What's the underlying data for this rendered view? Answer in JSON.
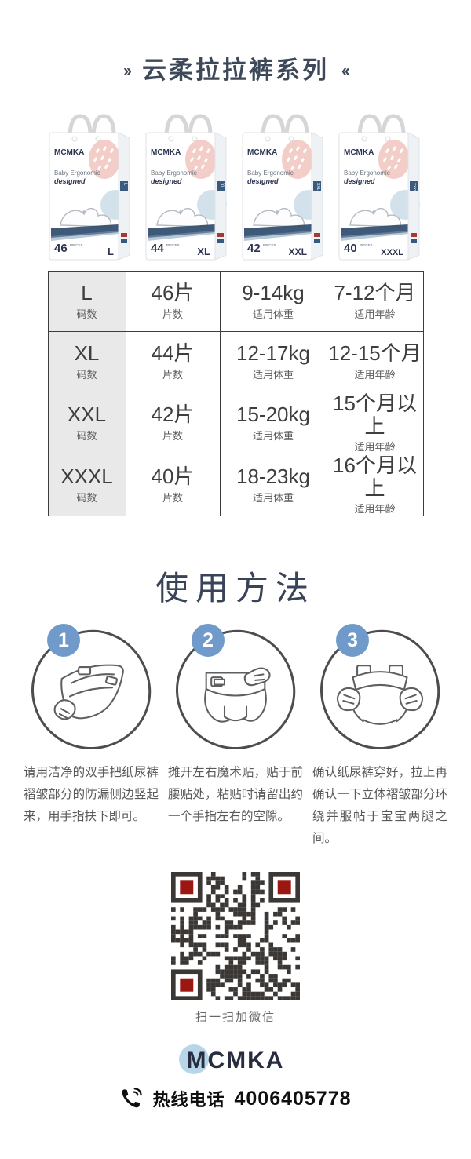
{
  "header": {
    "left_arrows": "››",
    "title": "云柔拉拉裤系列",
    "right_arrows": "‹‹"
  },
  "brand": "MCMKA",
  "package_text": {
    "line1": "Baby Ergonomic",
    "line2": "designed",
    "unit": "PIECES"
  },
  "products": [
    {
      "size": "L",
      "pieces": "46"
    },
    {
      "size": "XL",
      "pieces": "44"
    },
    {
      "size": "XXL",
      "pieces": "42"
    },
    {
      "size": "XXXL",
      "pieces": "40"
    }
  ],
  "size_table": {
    "rows": [
      {
        "size": "L",
        "size_label": "码数",
        "pieces": "46片",
        "pieces_label": "片数",
        "weight": "9-14kg",
        "weight_label": "适用体重",
        "age": "7-12个月",
        "age_label": "适用年龄"
      },
      {
        "size": "XL",
        "size_label": "码数",
        "pieces": "44片",
        "pieces_label": "片数",
        "weight": "12-17kg",
        "weight_label": "适用体重",
        "age": "12-15个月",
        "age_label": "适用年龄"
      },
      {
        "size": "XXL",
        "size_label": "码数",
        "pieces": "42片",
        "pieces_label": "片数",
        "weight": "15-20kg",
        "weight_label": "适用体重",
        "age": "15个月以上",
        "age_label": "适用年龄"
      },
      {
        "size": "XXXL",
        "size_label": "码数",
        "pieces": "40片",
        "pieces_label": "片数",
        "weight": "18-23kg",
        "weight_label": "适用体重",
        "age": "16个月以上",
        "age_label": "适用年龄"
      }
    ]
  },
  "usage": {
    "heading": "使用方法",
    "steps": [
      {
        "number": "1",
        "text": "请用洁净的双手把纸尿裤褶皱部分的防漏侧边竖起来，用手指扶下即可。"
      },
      {
        "number": "2",
        "text": "摊开左右魔术贴，贴于前腰贴处，粘贴时请留出约一个手指左右的空隙。"
      },
      {
        "number": "3",
        "text": "确认纸尿裤穿好，拉上再确认一下立体褶皱部分环绕并服帖于宝宝两腿之间。"
      }
    ]
  },
  "footer": {
    "qr_caption": "扫一扫加微信",
    "hotline_label": "热线电话",
    "hotline_number": "4006405778"
  },
  "colors": {
    "title_navy": "#3d4859",
    "badge_blue": "#6f9aca",
    "table_gray": "#e9e9e9",
    "qr_dark": "#3b3734",
    "qr_red": "#9b1712",
    "logo_circle_blue": "#b9d6e9",
    "package_pink": "#f3cdc7",
    "package_blue": "#d3e1eb",
    "package_navy": "#2f4c6e"
  }
}
